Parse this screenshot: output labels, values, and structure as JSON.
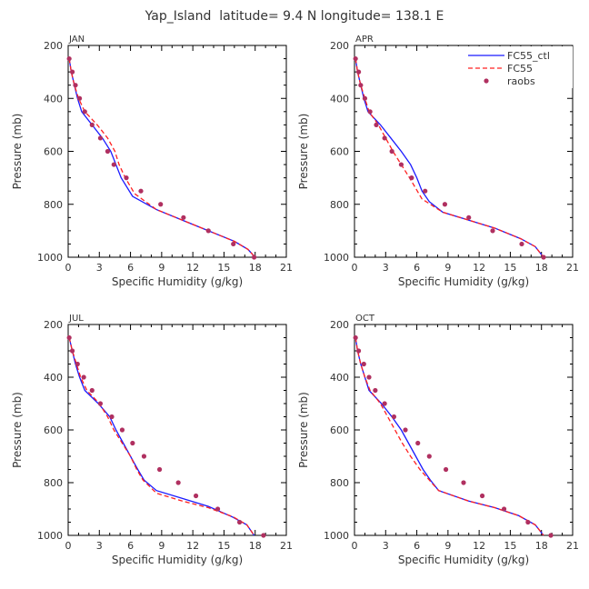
{
  "figure_title": "Yap_Island  latitude= 9.4 N longitude= 138.1 E",
  "xlabel": "Specific Humidity (g/kg)",
  "ylabel": "Pressure (mb)",
  "legend_labels": [
    "FC55_ctl",
    "FC55",
    "raobs"
  ],
  "colors": {
    "FC55_ctl": "#1a1aff",
    "FC55": "#ff2020",
    "raobs": "#b03060"
  },
  "chart_data": [
    {
      "type": "line",
      "title": "JAN",
      "xlim": [
        0,
        21
      ],
      "ylim": [
        1000,
        200
      ],
      "xticks": [
        0,
        3,
        6,
        9,
        12,
        15,
        18,
        21
      ],
      "yticks": [
        200,
        400,
        600,
        800,
        1000
      ],
      "legend_position": "none",
      "series": [
        {
          "name": "FC55_ctl",
          "style": "solid",
          "points": [
            [
              0.1,
              250
            ],
            [
              0.3,
              300
            ],
            [
              0.6,
              350
            ],
            [
              0.9,
              400
            ],
            [
              1.3,
              450
            ],
            [
              2.3,
              500
            ],
            [
              3.3,
              550
            ],
            [
              4.1,
              600
            ],
            [
              4.6,
              650
            ],
            [
              5.1,
              700
            ],
            [
              6.2,
              770
            ],
            [
              8.5,
              820
            ],
            [
              11,
              860
            ],
            [
              13.5,
              900
            ],
            [
              16,
              940
            ],
            [
              17.3,
              970
            ],
            [
              18,
              1000
            ]
          ]
        },
        {
          "name": "FC55",
          "style": "dashed",
          "points": [
            [
              0.1,
              250
            ],
            [
              0.3,
              300
            ],
            [
              0.6,
              350
            ],
            [
              1.0,
              400
            ],
            [
              1.6,
              450
            ],
            [
              2.8,
              500
            ],
            [
              3.8,
              550
            ],
            [
              4.5,
              600
            ],
            [
              4.9,
              650
            ],
            [
              5.5,
              700
            ],
            [
              6.4,
              760
            ],
            [
              8.5,
              820
            ],
            [
              11,
              860
            ],
            [
              13.5,
              900
            ],
            [
              16,
              940
            ],
            [
              17.3,
              970
            ],
            [
              18,
              1000
            ]
          ]
        },
        {
          "name": "raobs",
          "style": "markers",
          "points": [
            [
              0.1,
              250
            ],
            [
              0.4,
              300
            ],
            [
              0.7,
              350
            ],
            [
              1.1,
              400
            ],
            [
              1.6,
              450
            ],
            [
              2.3,
              500
            ],
            [
              3.1,
              550
            ],
            [
              3.8,
              600
            ],
            [
              4.4,
              650
            ],
            [
              5.6,
              700
            ],
            [
              7.0,
              750
            ],
            [
              8.9,
              800
            ],
            [
              11.1,
              850
            ],
            [
              13.5,
              900
            ],
            [
              15.9,
              950
            ],
            [
              17.9,
              1000
            ]
          ]
        }
      ]
    },
    {
      "type": "line",
      "title": "APR",
      "xlim": [
        0,
        21
      ],
      "ylim": [
        1000,
        200
      ],
      "xticks": [
        0,
        3,
        6,
        9,
        12,
        15,
        18,
        21
      ],
      "yticks": [
        200,
        400,
        600,
        800,
        1000
      ],
      "legend_position": "top-right",
      "series": [
        {
          "name": "FC55_ctl",
          "style": "solid",
          "points": [
            [
              0.1,
              250
            ],
            [
              0.3,
              300
            ],
            [
              0.6,
              350
            ],
            [
              0.9,
              400
            ],
            [
              1.3,
              450
            ],
            [
              2.5,
              500
            ],
            [
              3.5,
              550
            ],
            [
              4.5,
              600
            ],
            [
              5.4,
              650
            ],
            [
              6.0,
              700
            ],
            [
              6.5,
              750
            ],
            [
              7.2,
              790
            ],
            [
              8.5,
              830
            ],
            [
              11,
              860
            ],
            [
              13.5,
              890
            ],
            [
              16,
              930
            ],
            [
              17.4,
              960
            ],
            [
              18.2,
              1000
            ]
          ]
        },
        {
          "name": "FC55",
          "style": "dashed",
          "points": [
            [
              0.1,
              250
            ],
            [
              0.3,
              300
            ],
            [
              0.6,
              350
            ],
            [
              1.0,
              400
            ],
            [
              1.4,
              450
            ],
            [
              2.3,
              500
            ],
            [
              3.0,
              550
            ],
            [
              3.7,
              600
            ],
            [
              4.5,
              650
            ],
            [
              5.3,
              700
            ],
            [
              5.9,
              740
            ],
            [
              6.5,
              780
            ],
            [
              8.5,
              830
            ],
            [
              11,
              860
            ],
            [
              13.5,
              890
            ],
            [
              16,
              930
            ],
            [
              17.4,
              960
            ],
            [
              18.2,
              1000
            ]
          ]
        },
        {
          "name": "raobs",
          "style": "markers",
          "points": [
            [
              0.1,
              250
            ],
            [
              0.4,
              300
            ],
            [
              0.6,
              350
            ],
            [
              1.0,
              400
            ],
            [
              1.5,
              450
            ],
            [
              2.1,
              500
            ],
            [
              2.9,
              550
            ],
            [
              3.6,
              600
            ],
            [
              4.5,
              650
            ],
            [
              5.5,
              700
            ],
            [
              6.8,
              750
            ],
            [
              8.7,
              800
            ],
            [
              11.0,
              850
            ],
            [
              13.3,
              900
            ],
            [
              16.1,
              950
            ],
            [
              18.2,
              1000
            ]
          ]
        }
      ]
    },
    {
      "type": "line",
      "title": "JUL",
      "xlim": [
        0,
        21
      ],
      "ylim": [
        1000,
        200
      ],
      "xticks": [
        0,
        3,
        6,
        9,
        12,
        15,
        18,
        21
      ],
      "yticks": [
        200,
        400,
        600,
        800,
        1000
      ],
      "legend_position": "none",
      "series": [
        {
          "name": "FC55_ctl",
          "style": "solid",
          "points": [
            [
              0.1,
              250
            ],
            [
              0.4,
              300
            ],
            [
              0.7,
              350
            ],
            [
              1.1,
              400
            ],
            [
              1.6,
              450
            ],
            [
              2.9,
              500
            ],
            [
              4.0,
              550
            ],
            [
              4.6,
              600
            ],
            [
              5.3,
              650
            ],
            [
              6.0,
              700
            ],
            [
              6.7,
              750
            ],
            [
              7.3,
              790
            ],
            [
              8.5,
              830
            ],
            [
              11,
              860
            ],
            [
              13.5,
              890
            ],
            [
              15.8,
              930
            ],
            [
              17.2,
              960
            ],
            [
              17.9,
              1000
            ]
          ]
        },
        {
          "name": "FC55",
          "style": "dashed",
          "points": [
            [
              0.1,
              250
            ],
            [
              0.4,
              300
            ],
            [
              0.8,
              350
            ],
            [
              1.2,
              400
            ],
            [
              1.8,
              450
            ],
            [
              3.0,
              500
            ],
            [
              3.8,
              550
            ],
            [
              4.4,
              600
            ],
            [
              5.2,
              650
            ],
            [
              6.0,
              700
            ],
            [
              6.6,
              750
            ],
            [
              7.2,
              790
            ],
            [
              8.5,
              840
            ],
            [
              11,
              870
            ],
            [
              13.5,
              895
            ],
            [
              15.9,
              930
            ],
            [
              17.2,
              960
            ],
            [
              17.9,
              1000
            ]
          ]
        },
        {
          "name": "raobs",
          "style": "markers",
          "points": [
            [
              0.1,
              250
            ],
            [
              0.4,
              300
            ],
            [
              0.9,
              350
            ],
            [
              1.5,
              400
            ],
            [
              2.3,
              450
            ],
            [
              3.1,
              500
            ],
            [
              4.2,
              550
            ],
            [
              5.2,
              600
            ],
            [
              6.2,
              650
            ],
            [
              7.3,
              700
            ],
            [
              8.8,
              750
            ],
            [
              10.6,
              800
            ],
            [
              12.3,
              850
            ],
            [
              14.4,
              900
            ],
            [
              16.5,
              950
            ],
            [
              18.8,
              1000
            ]
          ]
        }
      ]
    },
    {
      "type": "line",
      "title": "OCT",
      "xlim": [
        0,
        21
      ],
      "ylim": [
        1000,
        200
      ],
      "xticks": [
        0,
        3,
        6,
        9,
        12,
        15,
        18,
        21
      ],
      "yticks": [
        200,
        400,
        600,
        800,
        1000
      ],
      "legend_position": "none",
      "series": [
        {
          "name": "FC55_ctl",
          "style": "solid",
          "points": [
            [
              0.1,
              250
            ],
            [
              0.3,
              300
            ],
            [
              0.6,
              350
            ],
            [
              1.0,
              400
            ],
            [
              1.4,
              450
            ],
            [
              2.6,
              500
            ],
            [
              3.6,
              550
            ],
            [
              4.5,
              600
            ],
            [
              5.2,
              650
            ],
            [
              5.9,
              700
            ],
            [
              6.6,
              750
            ],
            [
              7.3,
              790
            ],
            [
              8.1,
              830
            ],
            [
              11,
              870
            ],
            [
              13.5,
              895
            ],
            [
              15.8,
              925
            ],
            [
              17.4,
              960
            ],
            [
              18.2,
              1000
            ]
          ]
        },
        {
          "name": "FC55",
          "style": "dashed",
          "points": [
            [
              0.1,
              250
            ],
            [
              0.3,
              300
            ],
            [
              0.6,
              350
            ],
            [
              1.0,
              400
            ],
            [
              1.5,
              450
            ],
            [
              2.5,
              500
            ],
            [
              3.2,
              550
            ],
            [
              3.9,
              600
            ],
            [
              4.6,
              650
            ],
            [
              5.4,
              700
            ],
            [
              6.3,
              750
            ],
            [
              7.2,
              790
            ],
            [
              8.1,
              830
            ],
            [
              11,
              870
            ],
            [
              13.5,
              895
            ],
            [
              15.8,
              925
            ],
            [
              17.4,
              960
            ],
            [
              18.2,
              1000
            ]
          ]
        },
        {
          "name": "raobs",
          "style": "markers",
          "points": [
            [
              0.1,
              250
            ],
            [
              0.4,
              300
            ],
            [
              0.9,
              350
            ],
            [
              1.4,
              400
            ],
            [
              2.0,
              450
            ],
            [
              2.9,
              500
            ],
            [
              3.8,
              550
            ],
            [
              4.9,
              600
            ],
            [
              6.1,
              650
            ],
            [
              7.2,
              700
            ],
            [
              8.8,
              750
            ],
            [
              10.5,
              800
            ],
            [
              12.3,
              850
            ],
            [
              14.4,
              900
            ],
            [
              16.7,
              950
            ],
            [
              18.9,
              1000
            ]
          ]
        }
      ]
    }
  ]
}
